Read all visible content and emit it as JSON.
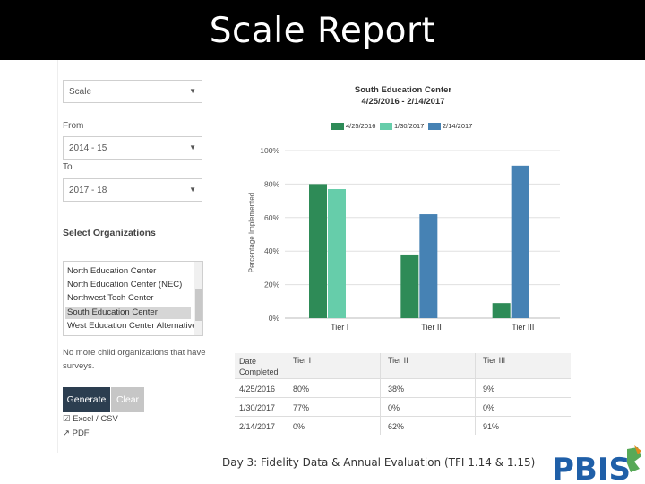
{
  "slide": {
    "title": "Scale Report",
    "footer": "Day 3: Fidelity Data & Annual Evaluation (TFI 1.14 & 1.15)",
    "logo_text": "PBIS"
  },
  "form": {
    "report_type": {
      "value": "Scale"
    },
    "from_label": "From",
    "from_value": "2014 - 15",
    "to_label": "To",
    "to_value": "2017 - 18",
    "select_orgs_label": "Select Organizations",
    "organizations": [
      "North Education Center",
      "North Education Center (NEC)",
      "Northwest Tech Center",
      "South Education Center",
      "West Education Center Alternative"
    ],
    "selected_org": "South Education Center",
    "note": "No more child organizations that have surveys.",
    "generate_label": "Generate",
    "clear_label": "Clear",
    "export_excel": "Excel / CSV",
    "export_pdf": "PDF"
  },
  "chart_data": {
    "type": "bar",
    "title": "South Education Center",
    "subtitle": "4/25/2016 - 2/14/2017",
    "ylabel": "Percentage Implemented",
    "categories": [
      "Tier I",
      "Tier II",
      "Tier III"
    ],
    "series": [
      {
        "name": "4/25/2016",
        "values": [
          80,
          38,
          9
        ],
        "color": "#2e8b57"
      },
      {
        "name": "1/30/2017",
        "values": [
          77,
          0,
          0
        ],
        "color": "#66cdaa"
      },
      {
        "name": "2/14/2017",
        "values": [
          0,
          62,
          91
        ],
        "color": "#4682b4"
      }
    ],
    "yticks": [
      "0%",
      "20%",
      "40%",
      "60%",
      "80%",
      "100%"
    ],
    "ylim": [
      0,
      100
    ],
    "grid": true,
    "legend": "top"
  },
  "table": {
    "headers": [
      "Date Completed",
      "Tier I",
      "Tier II",
      "Tier III"
    ],
    "rows": [
      [
        "4/25/2016",
        "80%",
        "38%",
        "9%"
      ],
      [
        "1/30/2017",
        "77%",
        "0%",
        "0%"
      ],
      [
        "2/14/2017",
        "0%",
        "62%",
        "91%"
      ]
    ]
  }
}
